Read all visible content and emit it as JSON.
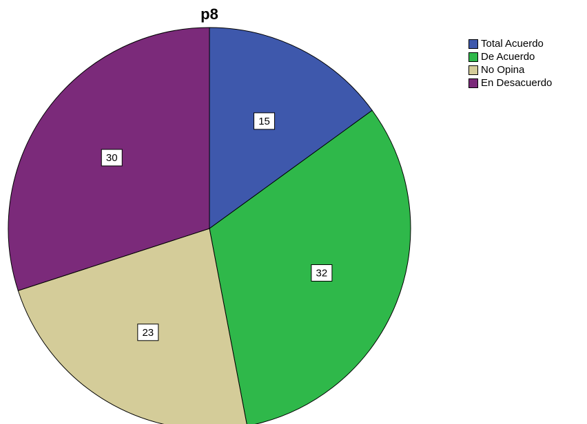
{
  "chart_data": {
    "type": "pie",
    "title": "p8",
    "categories": [
      "Total Acuerdo",
      "De Acuerdo",
      "No Opina",
      "En Desacuerdo"
    ],
    "values": [
      15,
      32,
      23,
      30
    ],
    "colors": [
      "#3e58ac",
      "#2fb84a",
      "#d4cc99",
      "#7b2a7a"
    ],
    "data_labels": [
      "15",
      "32",
      "23",
      "30"
    ],
    "legend_position": "top-right",
    "start_angle_deg": 0,
    "direction": "clockwise"
  }
}
